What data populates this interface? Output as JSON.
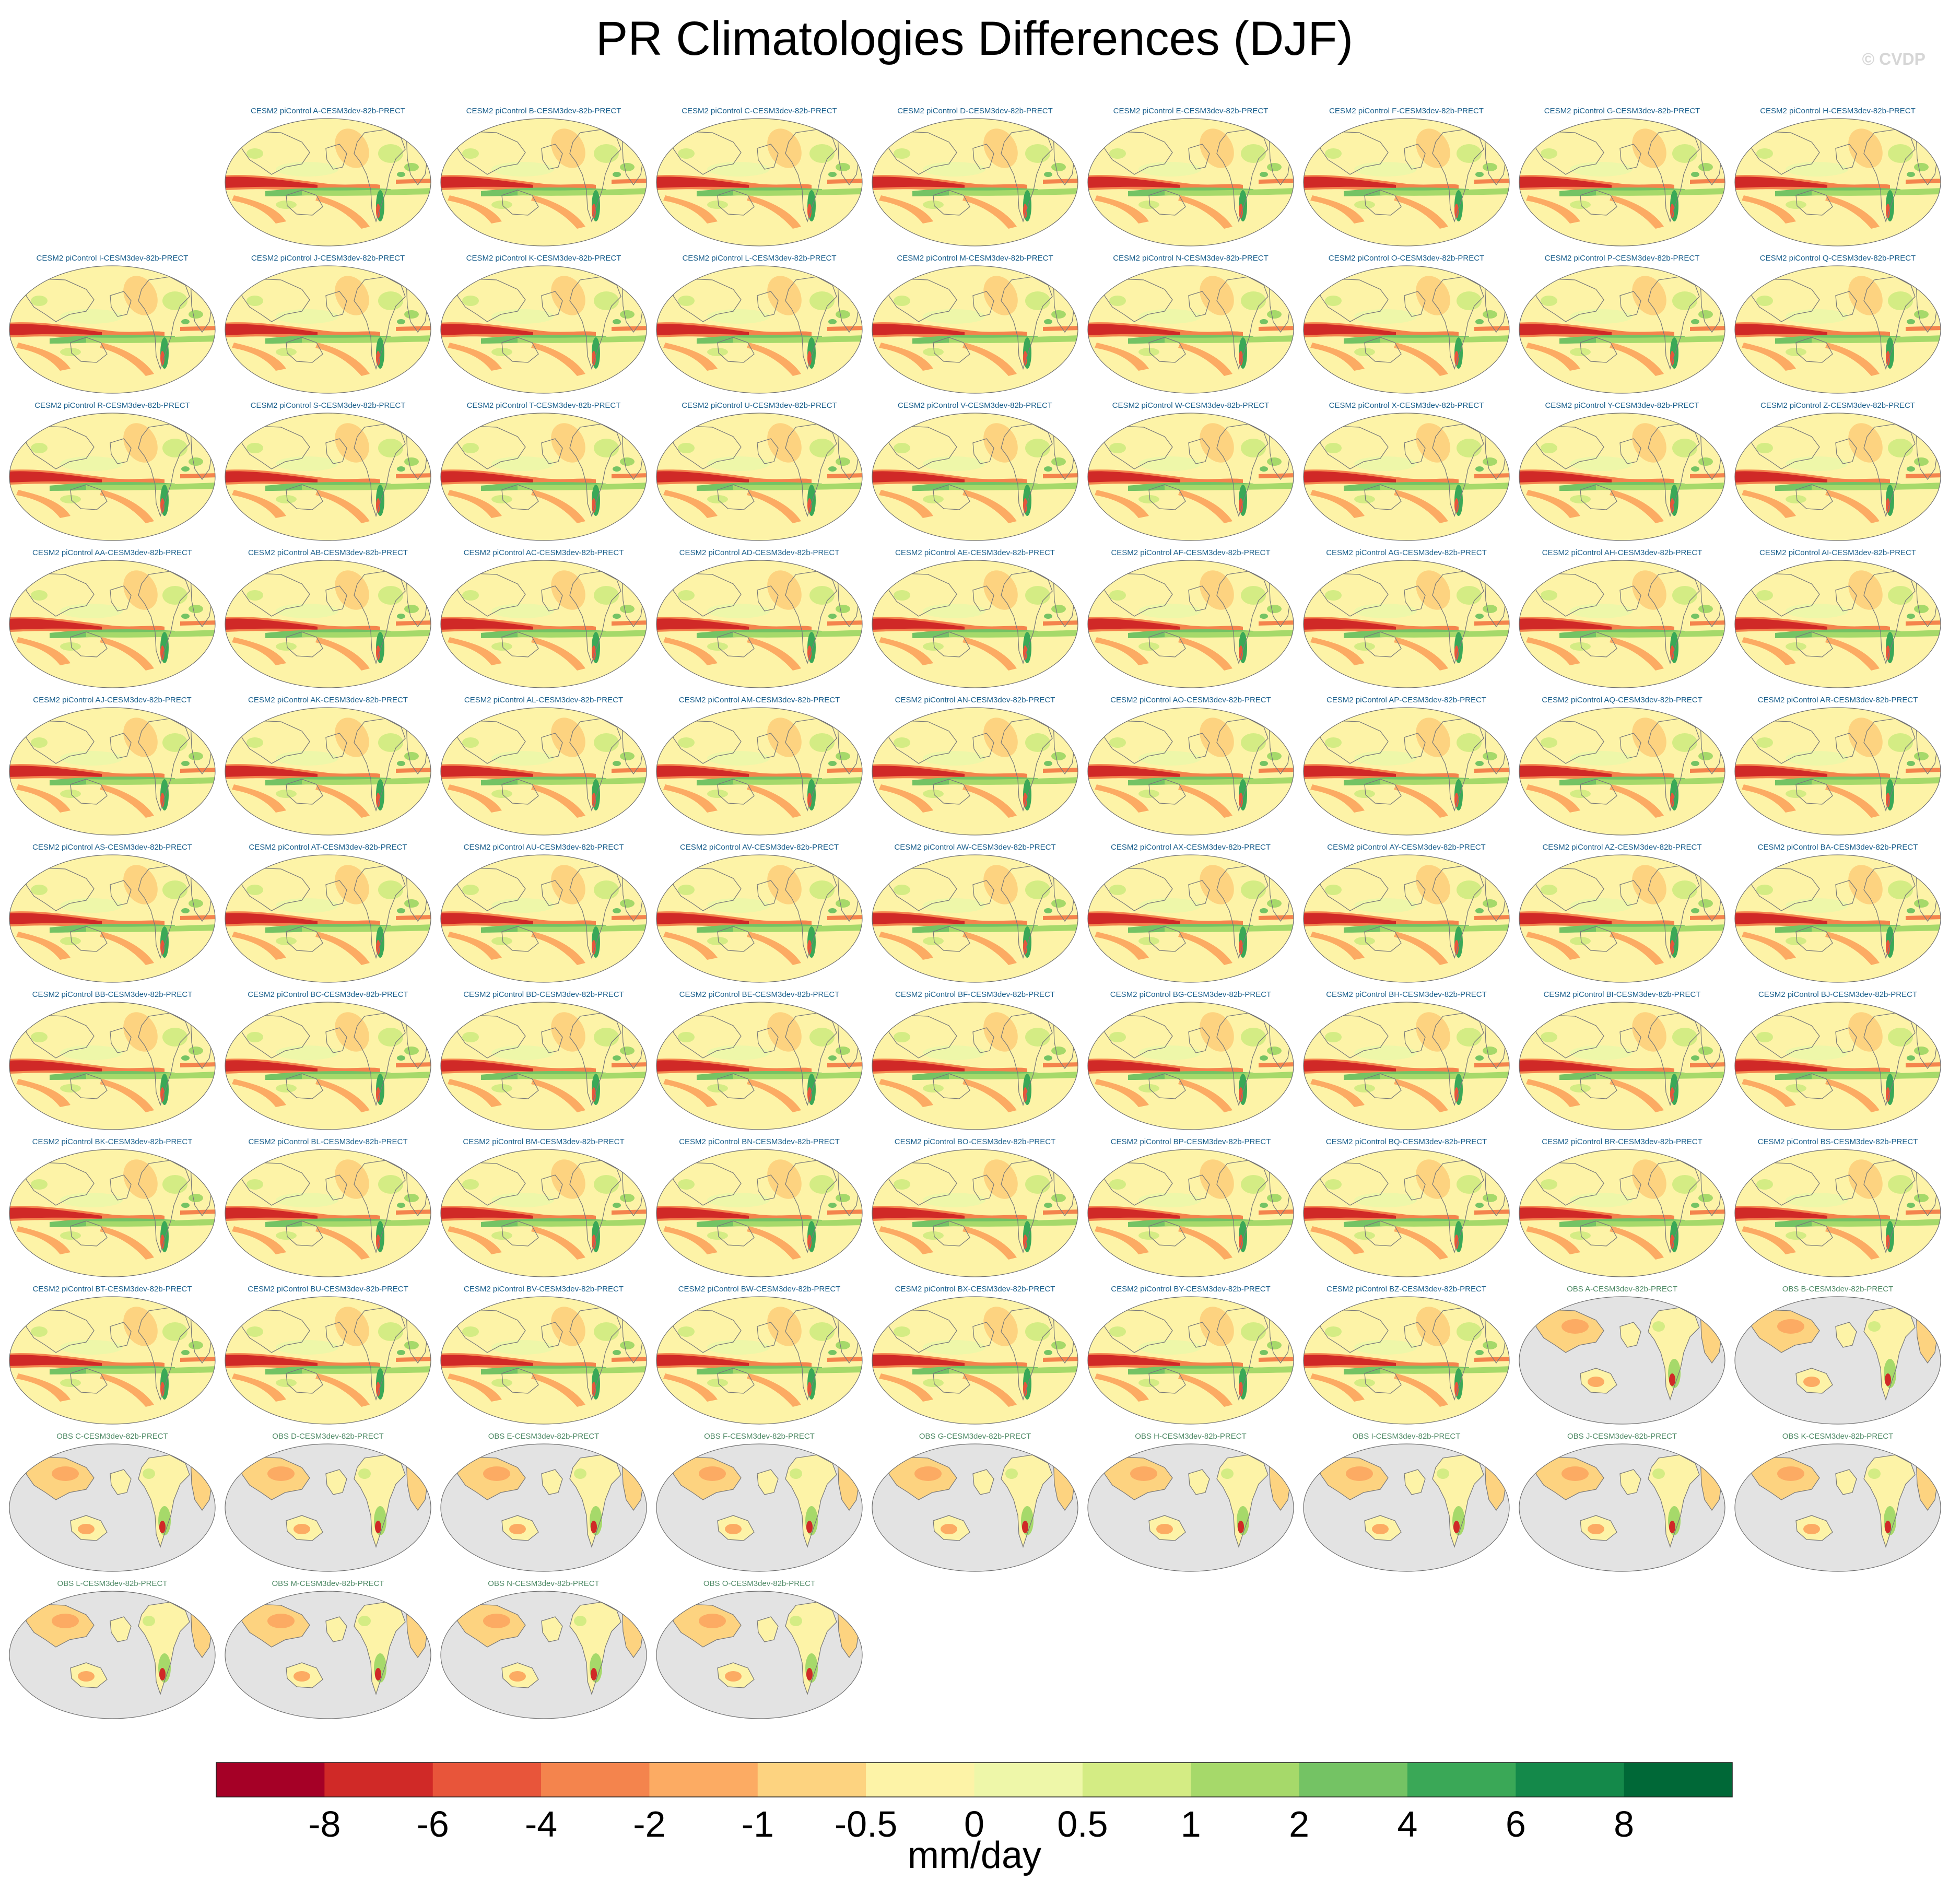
{
  "title": "PR Climatologies Differences (DJF)",
  "copyright": "© CVDP",
  "chart_data": {
    "type": "heatmap",
    "description_units": "mm/day",
    "colorbar": {
      "label": "mm/day",
      "tick_labels": [
        "-8",
        "-6",
        "-4",
        "-2",
        "-1",
        "-0.5",
        "0",
        "0.5",
        "1",
        "2",
        "4",
        "6",
        "8"
      ],
      "levels": [
        -8,
        -6,
        -4,
        -2,
        -1,
        -0.5,
        0,
        0.5,
        1,
        2,
        4,
        6,
        8
      ],
      "colors": [
        "#a50026",
        "#d02927",
        "#e8553a",
        "#f4844d",
        "#fcab63",
        "#fdd380",
        "#fdf3a7",
        "#eef7a9",
        "#d4ec84",
        "#a6d96a",
        "#74c364",
        "#3aa857",
        "#14894a",
        "#006837"
      ]
    },
    "panels": [
      {
        "title": "CESM2 piControl A-CESM3dev-82b-PRECT",
        "kind": "model"
      },
      {
        "title": "CESM2 piControl B-CESM3dev-82b-PRECT",
        "kind": "model"
      },
      {
        "title": "CESM2 piControl C-CESM3dev-82b-PRECT",
        "kind": "model"
      },
      {
        "title": "CESM2 piControl D-CESM3dev-82b-PRECT",
        "kind": "model"
      },
      {
        "title": "CESM2 piControl E-CESM3dev-82b-PRECT",
        "kind": "model"
      },
      {
        "title": "CESM2 piControl F-CESM3dev-82b-PRECT",
        "kind": "model"
      },
      {
        "title": "CESM2 piControl G-CESM3dev-82b-PRECT",
        "kind": "model"
      },
      {
        "title": "CESM2 piControl H-CESM3dev-82b-PRECT",
        "kind": "model"
      },
      {
        "title": "CESM2 piControl I-CESM3dev-82b-PRECT",
        "kind": "model"
      },
      {
        "title": "CESM2 piControl J-CESM3dev-82b-PRECT",
        "kind": "model"
      },
      {
        "title": "CESM2 piControl K-CESM3dev-82b-PRECT",
        "kind": "model"
      },
      {
        "title": "CESM2 piControl L-CESM3dev-82b-PRECT",
        "kind": "model"
      },
      {
        "title": "CESM2 piControl M-CESM3dev-82b-PRECT",
        "kind": "model"
      },
      {
        "title": "CESM2 piControl N-CESM3dev-82b-PRECT",
        "kind": "model"
      },
      {
        "title": "CESM2 piControl O-CESM3dev-82b-PRECT",
        "kind": "model"
      },
      {
        "title": "CESM2 piControl P-CESM3dev-82b-PRECT",
        "kind": "model"
      },
      {
        "title": "CESM2 piControl Q-CESM3dev-82b-PRECT",
        "kind": "model"
      },
      {
        "title": "CESM2 piControl R-CESM3dev-82b-PRECT",
        "kind": "model"
      },
      {
        "title": "CESM2 piControl S-CESM3dev-82b-PRECT",
        "kind": "model"
      },
      {
        "title": "CESM2 piControl T-CESM3dev-82b-PRECT",
        "kind": "model"
      },
      {
        "title": "CESM2 piControl U-CESM3dev-82b-PRECT",
        "kind": "model"
      },
      {
        "title": "CESM2 piControl V-CESM3dev-82b-PRECT",
        "kind": "model"
      },
      {
        "title": "CESM2 piControl W-CESM3dev-82b-PRECT",
        "kind": "model"
      },
      {
        "title": "CESM2 piControl X-CESM3dev-82b-PRECT",
        "kind": "model"
      },
      {
        "title": "CESM2 piControl Y-CESM3dev-82b-PRECT",
        "kind": "model"
      },
      {
        "title": "CESM2 piControl Z-CESM3dev-82b-PRECT",
        "kind": "model"
      },
      {
        "title": "CESM2 piControl AA-CESM3dev-82b-PRECT",
        "kind": "model"
      },
      {
        "title": "CESM2 piControl AB-CESM3dev-82b-PRECT",
        "kind": "model"
      },
      {
        "title": "CESM2 piControl AC-CESM3dev-82b-PRECT",
        "kind": "model"
      },
      {
        "title": "CESM2 piControl AD-CESM3dev-82b-PRECT",
        "kind": "model"
      },
      {
        "title": "CESM2 piControl AE-CESM3dev-82b-PRECT",
        "kind": "model"
      },
      {
        "title": "CESM2 piControl AF-CESM3dev-82b-PRECT",
        "kind": "model"
      },
      {
        "title": "CESM2 piControl AG-CESM3dev-82b-PRECT",
        "kind": "model"
      },
      {
        "title": "CESM2 piControl AH-CESM3dev-82b-PRECT",
        "kind": "model"
      },
      {
        "title": "CESM2 piControl AI-CESM3dev-82b-PRECT",
        "kind": "model"
      },
      {
        "title": "CESM2 piControl AJ-CESM3dev-82b-PRECT",
        "kind": "model"
      },
      {
        "title": "CESM2 piControl AK-CESM3dev-82b-PRECT",
        "kind": "model"
      },
      {
        "title": "CESM2 piControl AL-CESM3dev-82b-PRECT",
        "kind": "model"
      },
      {
        "title": "CESM2 piControl AM-CESM3dev-82b-PRECT",
        "kind": "model"
      },
      {
        "title": "CESM2 piControl AN-CESM3dev-82b-PRECT",
        "kind": "model"
      },
      {
        "title": "CESM2 piControl AO-CESM3dev-82b-PRECT",
        "kind": "model"
      },
      {
        "title": "CESM2 piControl AP-CESM3dev-82b-PRECT",
        "kind": "model"
      },
      {
        "title": "CESM2 piControl AQ-CESM3dev-82b-PRECT",
        "kind": "model"
      },
      {
        "title": "CESM2 piControl AR-CESM3dev-82b-PRECT",
        "kind": "model"
      },
      {
        "title": "CESM2 piControl AS-CESM3dev-82b-PRECT",
        "kind": "model"
      },
      {
        "title": "CESM2 piControl AT-CESM3dev-82b-PRECT",
        "kind": "model"
      },
      {
        "title": "CESM2 piControl AU-CESM3dev-82b-PRECT",
        "kind": "model"
      },
      {
        "title": "CESM2 piControl AV-CESM3dev-82b-PRECT",
        "kind": "model"
      },
      {
        "title": "CESM2 piControl AW-CESM3dev-82b-PRECT",
        "kind": "model"
      },
      {
        "title": "CESM2 piControl AX-CESM3dev-82b-PRECT",
        "kind": "model"
      },
      {
        "title": "CESM2 piControl AY-CESM3dev-82b-PRECT",
        "kind": "model"
      },
      {
        "title": "CESM2 piControl AZ-CESM3dev-82b-PRECT",
        "kind": "model"
      },
      {
        "title": "CESM2 piControl BA-CESM3dev-82b-PRECT",
        "kind": "model"
      },
      {
        "title": "CESM2 piControl BB-CESM3dev-82b-PRECT",
        "kind": "model"
      },
      {
        "title": "CESM2 piControl BC-CESM3dev-82b-PRECT",
        "kind": "model"
      },
      {
        "title": "CESM2 piControl BD-CESM3dev-82b-PRECT",
        "kind": "model"
      },
      {
        "title": "CESM2 piControl BE-CESM3dev-82b-PRECT",
        "kind": "model"
      },
      {
        "title": "CESM2 piControl BF-CESM3dev-82b-PRECT",
        "kind": "model"
      },
      {
        "title": "CESM2 piControl BG-CESM3dev-82b-PRECT",
        "kind": "model"
      },
      {
        "title": "CESM2 piControl BH-CESM3dev-82b-PRECT",
        "kind": "model"
      },
      {
        "title": "CESM2 piControl BI-CESM3dev-82b-PRECT",
        "kind": "model"
      },
      {
        "title": "CESM2 piControl BJ-CESM3dev-82b-PRECT",
        "kind": "model"
      },
      {
        "title": "CESM2 piControl BK-CESM3dev-82b-PRECT",
        "kind": "model"
      },
      {
        "title": "CESM2 piControl BL-CESM3dev-82b-PRECT",
        "kind": "model"
      },
      {
        "title": "CESM2 piControl BM-CESM3dev-82b-PRECT",
        "kind": "model"
      },
      {
        "title": "CESM2 piControl BN-CESM3dev-82b-PRECT",
        "kind": "model"
      },
      {
        "title": "CESM2 piControl BO-CESM3dev-82b-PRECT",
        "kind": "model"
      },
      {
        "title": "CESM2 piControl BP-CESM3dev-82b-PRECT",
        "kind": "model"
      },
      {
        "title": "CESM2 piControl BQ-CESM3dev-82b-PRECT",
        "kind": "model"
      },
      {
        "title": "CESM2 piControl BR-CESM3dev-82b-PRECT",
        "kind": "model"
      },
      {
        "title": "CESM2 piControl BS-CESM3dev-82b-PRECT",
        "kind": "model"
      },
      {
        "title": "CESM2 piControl BT-CESM3dev-82b-PRECT",
        "kind": "model"
      },
      {
        "title": "CESM2 piControl BU-CESM3dev-82b-PRECT",
        "kind": "model"
      },
      {
        "title": "CESM2 piControl BV-CESM3dev-82b-PRECT",
        "kind": "model"
      },
      {
        "title": "CESM2 piControl BW-CESM3dev-82b-PRECT",
        "kind": "model"
      },
      {
        "title": "CESM2 piControl BX-CESM3dev-82b-PRECT",
        "kind": "model"
      },
      {
        "title": "CESM2 piControl BY-CESM3dev-82b-PRECT",
        "kind": "model"
      },
      {
        "title": "CESM2 piControl BZ-CESM3dev-82b-PRECT",
        "kind": "model"
      },
      {
        "title": "OBS A-CESM3dev-82b-PRECT",
        "kind": "obs"
      },
      {
        "title": "OBS B-CESM3dev-82b-PRECT",
        "kind": "obs"
      },
      {
        "title": "OBS C-CESM3dev-82b-PRECT",
        "kind": "obs"
      },
      {
        "title": "OBS D-CESM3dev-82b-PRECT",
        "kind": "obs"
      },
      {
        "title": "OBS E-CESM3dev-82b-PRECT",
        "kind": "obs"
      },
      {
        "title": "OBS F-CESM3dev-82b-PRECT",
        "kind": "obs"
      },
      {
        "title": "OBS G-CESM3dev-82b-PRECT",
        "kind": "obs"
      },
      {
        "title": "OBS H-CESM3dev-82b-PRECT",
        "kind": "obs"
      },
      {
        "title": "OBS I-CESM3dev-82b-PRECT",
        "kind": "obs"
      },
      {
        "title": "OBS J-CESM3dev-82b-PRECT",
        "kind": "obs"
      },
      {
        "title": "OBS K-CESM3dev-82b-PRECT",
        "kind": "obs"
      },
      {
        "title": "OBS L-CESM3dev-82b-PRECT",
        "kind": "obs"
      },
      {
        "title": "OBS M-CESM3dev-82b-PRECT",
        "kind": "obs"
      },
      {
        "title": "OBS N-CESM3dev-82b-PRECT",
        "kind": "obs"
      },
      {
        "title": "OBS O-CESM3dev-82b-PRECT",
        "kind": "obs"
      }
    ]
  }
}
